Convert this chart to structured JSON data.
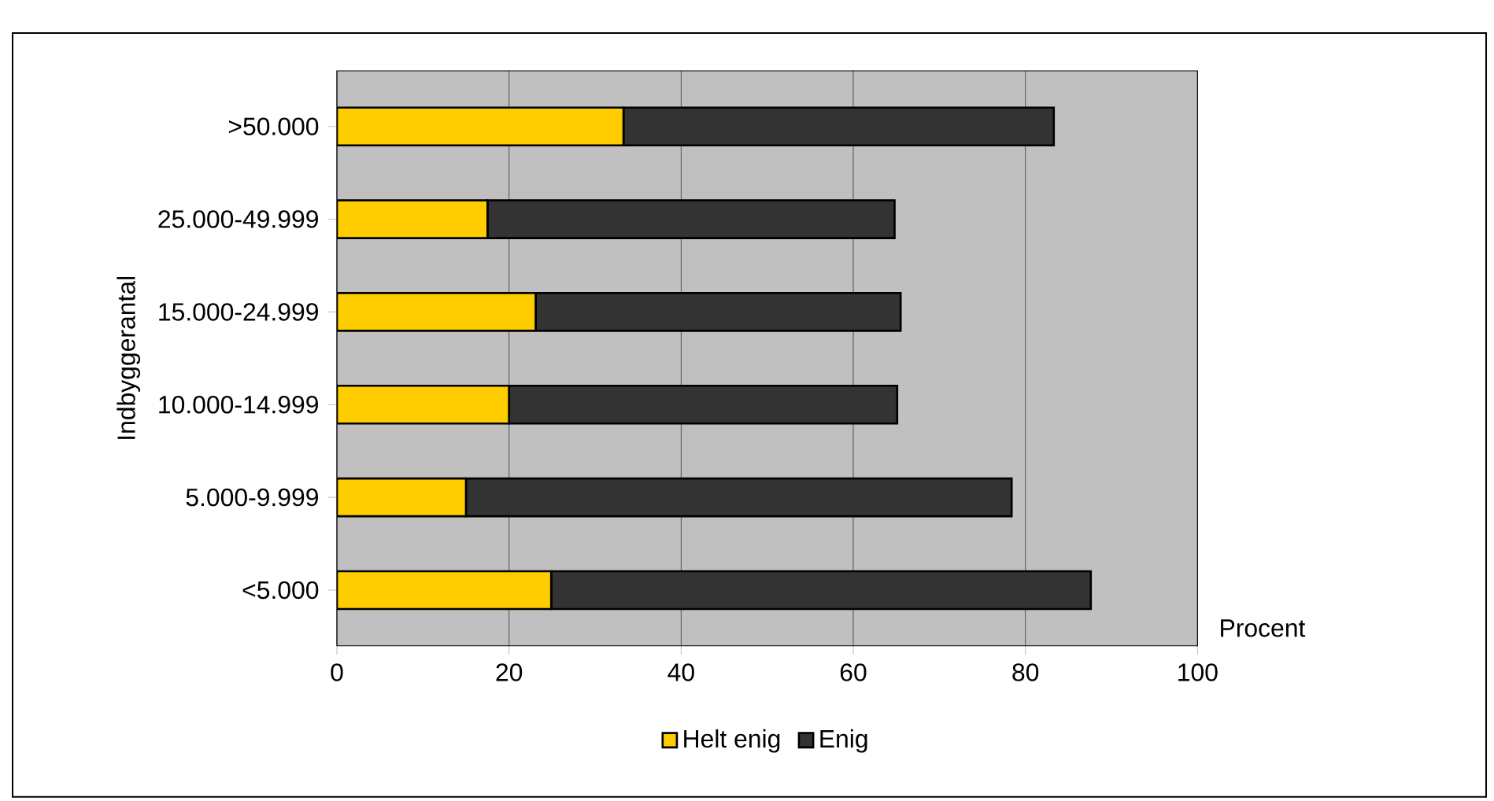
{
  "chart_data": {
    "type": "bar",
    "orientation": "horizontal",
    "stacked": true,
    "categories": [
      ">50.000",
      "25.000-49.999",
      "15.000-24.999",
      "10.000-14.999",
      "5.000-9.999",
      "<5.000"
    ],
    "series": [
      {
        "name": "Helt enig",
        "color": "#ffcc00",
        "values": [
          33.3,
          17.5,
          23.1,
          20.0,
          15.0,
          24.9
        ]
      },
      {
        "name": "Enig",
        "color": "#333333",
        "values": [
          50.0,
          47.3,
          42.4,
          45.1,
          63.4,
          62.7
        ]
      }
    ],
    "xlabel": "Procent",
    "ylabel": "Indbyggerantal",
    "xlim": [
      0,
      100
    ],
    "xticks": [
      0,
      20,
      40,
      60,
      80,
      100
    ],
    "grid": "x",
    "legend": "bottom"
  }
}
